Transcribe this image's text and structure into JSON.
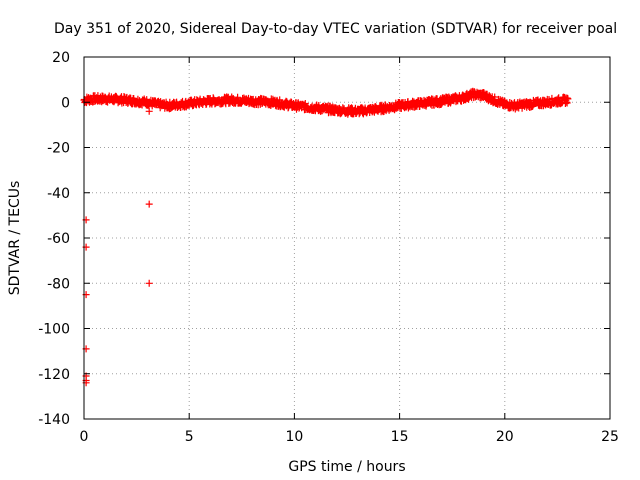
{
  "chart_data": {
    "type": "scatter",
    "title": "Day 351 of 2020, Sidereal Day-to-day VTEC variation (SDTVAR) for receiver poal",
    "xlabel": "GPS time / hours",
    "ylabel": "SDTVAR / TECUs",
    "xlim": [
      0,
      25
    ],
    "ylim": [
      -140,
      20
    ],
    "xticks": [
      0,
      5,
      10,
      15,
      20,
      25
    ],
    "yticks": [
      20,
      0,
      -20,
      -40,
      -60,
      -80,
      -100,
      -120,
      -140
    ],
    "xtick_labels": [
      "0",
      "5",
      "10",
      "15",
      "20",
      "25"
    ],
    "ytick_labels": [
      "20",
      "0",
      "-20",
      "-40",
      "-60",
      "-80",
      "-100",
      "-120",
      "-140"
    ],
    "grid": true,
    "marker": "+",
    "color": "#ff0000",
    "series": [
      {
        "name": "SDTVAR",
        "curve_x": [
          0,
          0.5,
          1,
          2,
          3,
          3.5,
          4,
          5,
          6,
          7,
          8,
          9,
          10,
          11,
          12,
          13,
          14,
          15,
          16,
          17,
          18,
          18.5,
          19,
          19.5,
          20,
          20.5,
          21,
          22,
          23
        ],
        "curve_y": [
          1,
          1.5,
          1.5,
          1,
          0,
          -1,
          -1.5,
          -0.5,
          0.5,
          1,
          0.5,
          0,
          -1.5,
          -2.5,
          -3.5,
          -4,
          -3,
          -1.5,
          -0.5,
          0.5,
          2,
          3.5,
          3,
          1,
          -1,
          -1.5,
          -1,
          0,
          1
        ],
        "outlier_x": [
          0.1,
          0.1,
          0.1,
          0.1,
          0.1,
          0.1,
          0.1,
          3.1,
          3.1,
          3.1
        ],
        "outlier_y": [
          -52,
          -64,
          -85,
          -109,
          -121,
          -123,
          -124,
          -4,
          -45,
          -80
        ]
      }
    ]
  }
}
